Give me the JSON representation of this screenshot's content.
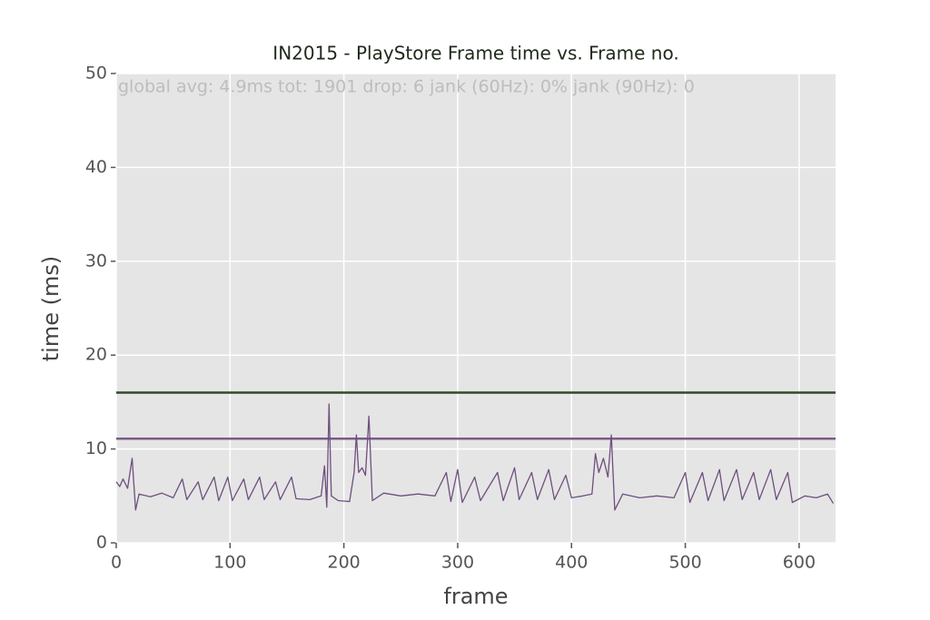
{
  "chart_data": {
    "type": "line",
    "title": "IN2015 - PlayStore Frame time vs. Frame no.",
    "annotation": "global avg: 4.9ms tot: 1901 drop: 6 jank (60Hz): 0% jank (90Hz): 0",
    "x_label": "frame",
    "y_label": "time (ms)",
    "xlim": [
      0,
      632
    ],
    "ylim": [
      0,
      50
    ],
    "xticks": [
      0,
      100,
      200,
      300,
      400,
      500,
      600
    ],
    "yticks": [
      0,
      10,
      20,
      30,
      40,
      50
    ],
    "grid": true,
    "reference_lines": [
      {
        "value": 16,
        "color": "#2f4a2a"
      },
      {
        "value": 11.1,
        "color": "#7b5a86"
      }
    ],
    "series": [
      {
        "color": "#6e4f7e",
        "x": [
          0,
          3,
          6,
          10,
          14,
          17,
          20,
          30,
          40,
          50,
          58,
          62,
          72,
          76,
          86,
          90,
          98,
          102,
          112,
          116,
          126,
          130,
          140,
          144,
          154,
          158,
          170,
          180,
          183,
          185,
          187,
          189,
          195,
          205,
          209,
          211,
          213,
          216,
          219,
          222,
          225,
          235,
          250,
          265,
          280,
          290,
          294,
          300,
          304,
          315,
          320,
          335,
          340,
          350,
          354,
          365,
          370,
          380,
          385,
          395,
          400,
          410,
          418,
          421,
          424,
          428,
          432,
          435,
          438,
          445,
          460,
          475,
          490,
          500,
          504,
          515,
          520,
          530,
          534,
          545,
          550,
          560,
          565,
          575,
          580,
          590,
          594,
          605,
          615,
          625,
          630
        ],
        "values": [
          6.5,
          6,
          6.8,
          5.8,
          9,
          3.5,
          5.2,
          4.9,
          5.3,
          4.8,
          6.8,
          4.6,
          6.5,
          4.6,
          7,
          4.5,
          7,
          4.5,
          6.8,
          4.6,
          7,
          4.6,
          6.5,
          4.6,
          7,
          4.7,
          4.6,
          5,
          8.2,
          3.8,
          14.8,
          5,
          4.5,
          4.4,
          7.5,
          11.5,
          7.5,
          8,
          7.2,
          13.5,
          4.5,
          5.3,
          5,
          5.2,
          5,
          7.5,
          4.4,
          7.8,
          4.3,
          7,
          4.5,
          7.5,
          4.5,
          8,
          4.6,
          7.5,
          4.6,
          7.8,
          4.6,
          7.2,
          4.8,
          5,
          5.2,
          9.5,
          7.5,
          9,
          7,
          11.5,
          3.5,
          5.2,
          4.8,
          5,
          4.8,
          7.5,
          4.3,
          7.5,
          4.5,
          7.8,
          4.5,
          7.8,
          4.6,
          7.5,
          4.6,
          7.8,
          4.6,
          7.5,
          4.3,
          5,
          4.8,
          5.2,
          4.2
        ]
      }
    ]
  }
}
